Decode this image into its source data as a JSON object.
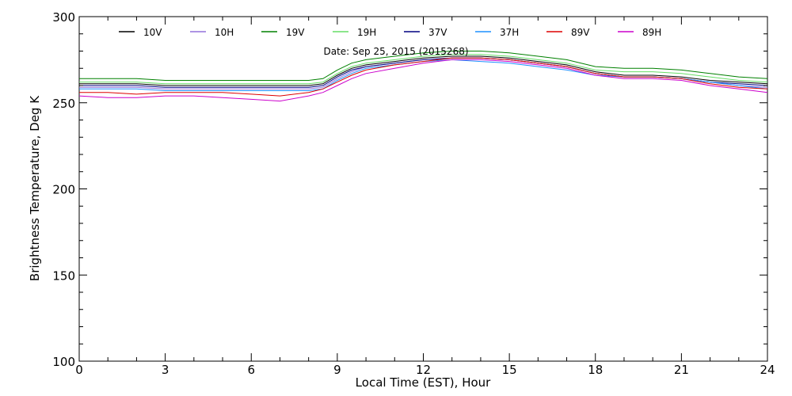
{
  "chart_data": {
    "type": "line",
    "xlabel": "Local Time (EST), Hour",
    "ylabel": "Brightness Temperature, Deg K",
    "annotation": "Date: Sep 25, 2015 (2015268)",
    "xlim": [
      0,
      24
    ],
    "ylim": [
      100,
      300
    ],
    "xticks": [
      0,
      3,
      6,
      9,
      12,
      15,
      18,
      21,
      24
    ],
    "xtick_labels": [
      "0",
      "3",
      "6",
      "9",
      "12",
      "15",
      "18",
      "21",
      "24"
    ],
    "yticks": [
      100,
      150,
      200,
      250,
      300
    ],
    "ytick_labels": [
      "100",
      "150",
      "200",
      "250",
      "300"
    ],
    "grid": false,
    "legend_placement": "top",
    "x": [
      0,
      1,
      2,
      3,
      4,
      5,
      6,
      7,
      8,
      8.5,
      9,
      9.5,
      10,
      11,
      12,
      13,
      14,
      15,
      16,
      17,
      18,
      19,
      20,
      21,
      22,
      23,
      24
    ],
    "series": [
      {
        "name": "10V",
        "color": "#000000",
        "values": [
          261,
          261,
          261,
          260,
          260,
          260,
          260,
          260,
          260,
          261,
          266,
          270,
          272,
          274,
          276,
          277,
          277,
          276,
          274,
          272,
          268,
          266,
          266,
          265,
          263,
          262,
          261
        ]
      },
      {
        "name": "10H",
        "color": "#9370db",
        "values": [
          259,
          259,
          259,
          258,
          258,
          258,
          258,
          258,
          258,
          259,
          264,
          268,
          271,
          273,
          275,
          276,
          276,
          275,
          273,
          271,
          267,
          265,
          265,
          264,
          262,
          260,
          259
        ]
      },
      {
        "name": "19V",
        "color": "#008000",
        "values": [
          264,
          264,
          264,
          263,
          263,
          263,
          263,
          263,
          263,
          264,
          269,
          273,
          275,
          277,
          279,
          280,
          280,
          279,
          277,
          275,
          271,
          270,
          270,
          269,
          267,
          265,
          264
        ]
      },
      {
        "name": "19H",
        "color": "#66dd66",
        "values": [
          262,
          262,
          262,
          261,
          261,
          261,
          261,
          261,
          261,
          262,
          267,
          271,
          273,
          275,
          277,
          278,
          278,
          277,
          275,
          273,
          269,
          268,
          268,
          267,
          265,
          263,
          262
        ]
      },
      {
        "name": "37V",
        "color": "#000080",
        "values": [
          260,
          260,
          260,
          259,
          259,
          259,
          259,
          259,
          259,
          260,
          265,
          269,
          271,
          273,
          275,
          276,
          276,
          275,
          273,
          271,
          267,
          265,
          265,
          264,
          262,
          261,
          260
        ]
      },
      {
        "name": "37H",
        "color": "#1e90ff",
        "values": [
          258,
          258,
          258,
          257,
          257,
          257,
          257,
          257,
          257,
          258,
          263,
          267,
          270,
          272,
          274,
          275,
          274,
          273,
          271,
          269,
          266,
          265,
          265,
          264,
          262,
          260,
          258
        ]
      },
      {
        "name": "89V",
        "color": "#dd0000",
        "values": [
          256,
          256,
          255,
          256,
          256,
          256,
          255,
          254,
          256,
          258,
          262,
          266,
          269,
          272,
          274,
          276,
          276,
          275,
          273,
          271,
          267,
          265,
          265,
          264,
          261,
          259,
          258
        ]
      },
      {
        "name": "89H",
        "color": "#cc00cc",
        "values": [
          254,
          253,
          253,
          254,
          254,
          253,
          252,
          251,
          254,
          256,
          260,
          264,
          267,
          270,
          273,
          275,
          275,
          274,
          272,
          270,
          266,
          264,
          264,
          263,
          260,
          258,
          256
        ]
      }
    ]
  }
}
